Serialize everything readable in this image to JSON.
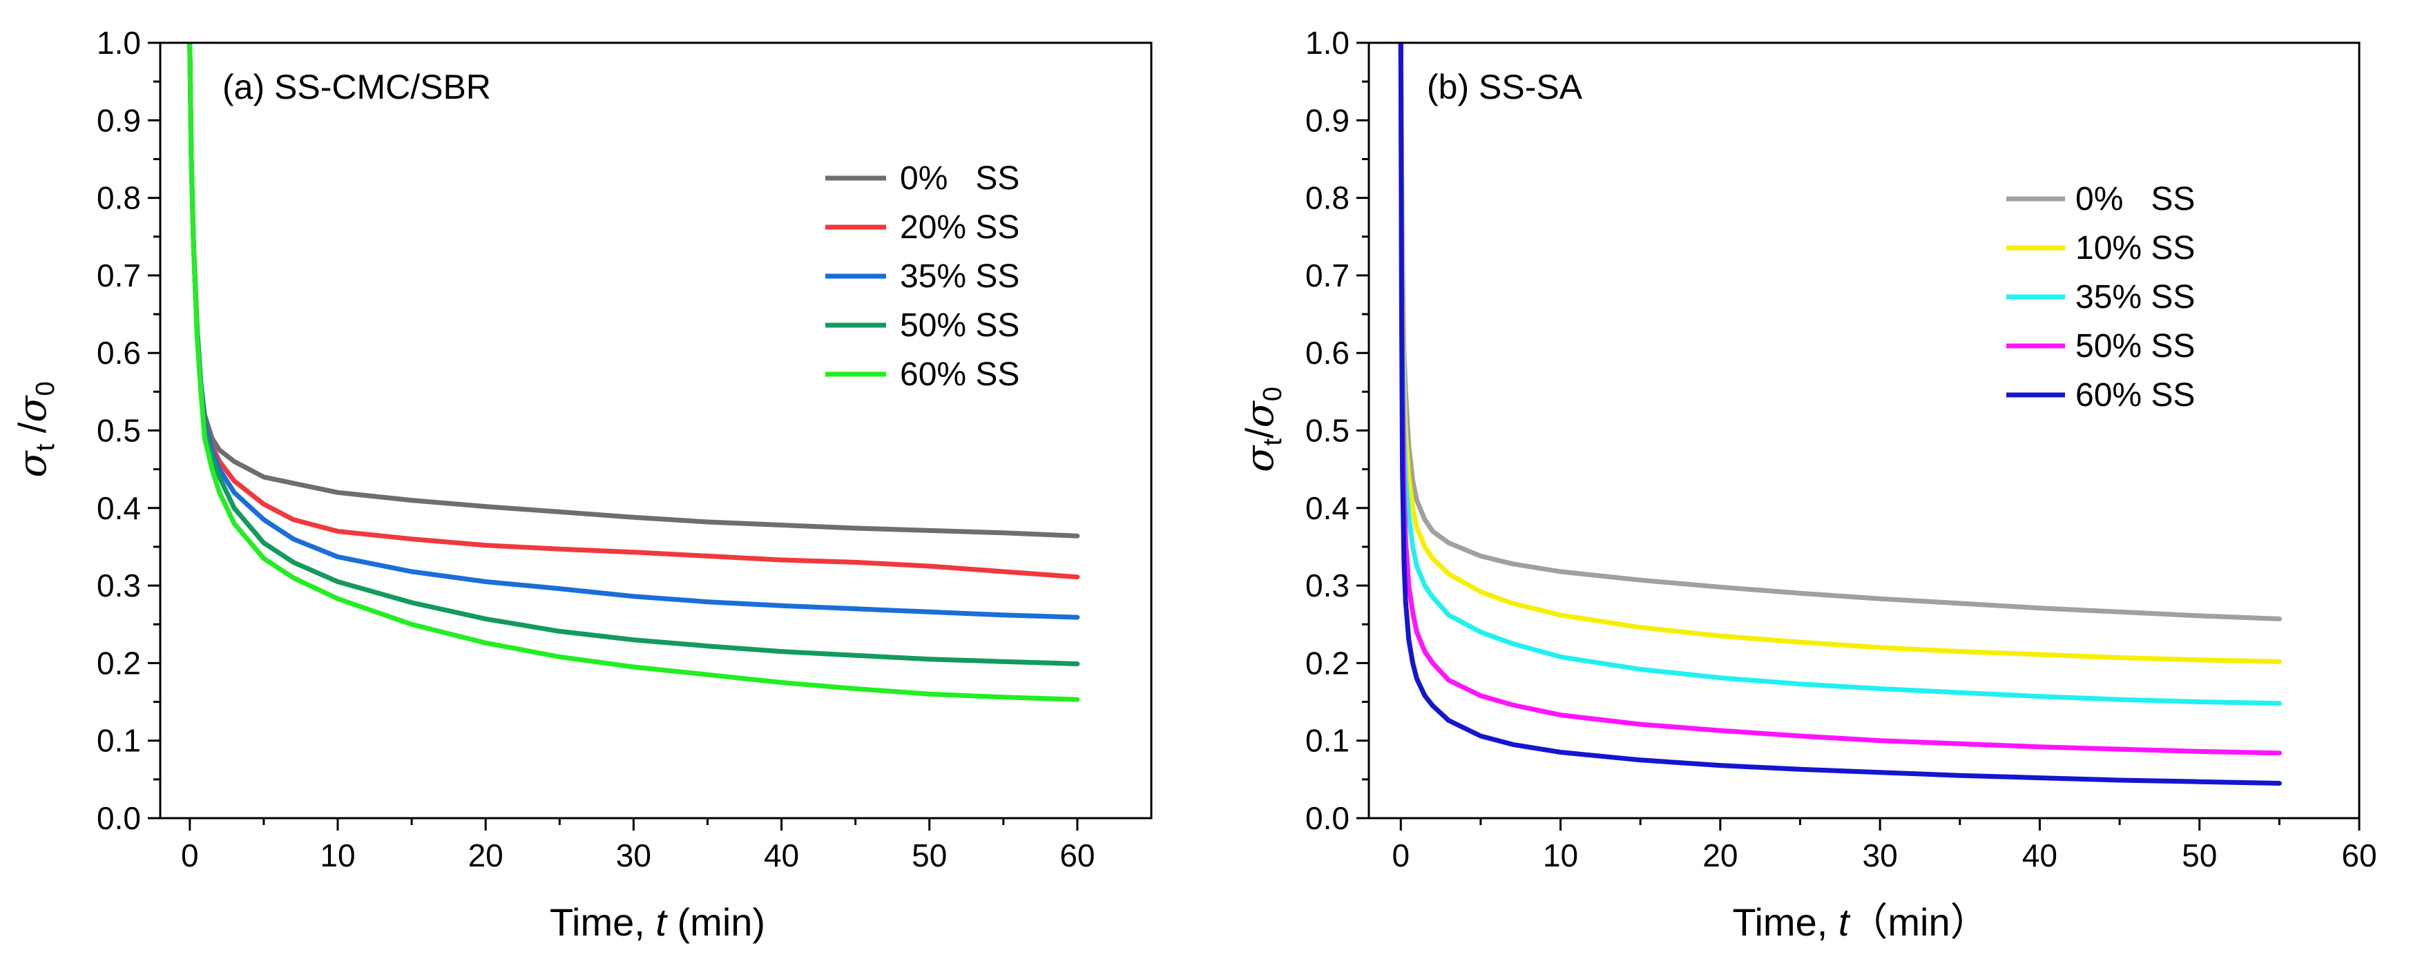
{
  "chart_data": [
    {
      "type": "line",
      "title": "(a) SS-CMC/SBR",
      "xlabel": {
        "prefix": "Time, ",
        "var": "t",
        "suffix": " (min)"
      },
      "ylabel": {
        "sym": "σ",
        "sub1": "t",
        "sep": " /",
        "sub2": "0"
      },
      "xlim": [
        -2,
        65
      ],
      "ylim": [
        0,
        1.0
      ],
      "xticks": [
        0,
        10,
        20,
        30,
        40,
        50,
        60
      ],
      "xtick_labels": [
        "0",
        "10",
        "20",
        "30",
        "40",
        "50",
        "60"
      ],
      "yticks": [
        0,
        0.1,
        0.2,
        0.3,
        0.4,
        0.5,
        0.6,
        0.7,
        0.8,
        0.9,
        1.0
      ],
      "ytick_labels": [
        "0.0",
        "0.1",
        "0.2",
        "0.3",
        "0.4",
        "0.5",
        "0.6",
        "0.7",
        "0.8",
        "0.9",
        "1.0"
      ],
      "grid": false,
      "legend_position": "top-right",
      "series": [
        {
          "name": "0%   SS",
          "color": "#6e6e6e",
          "x": [
            0,
            0.1,
            0.25,
            0.5,
            0.75,
            1,
            1.5,
            2,
            3,
            5,
            7,
            10,
            15,
            20,
            25,
            30,
            35,
            40,
            45,
            50,
            55,
            60
          ],
          "y": [
            1.0,
            0.85,
            0.74,
            0.63,
            0.56,
            0.52,
            0.49,
            0.475,
            0.46,
            0.44,
            0.432,
            0.42,
            0.41,
            0.402,
            0.395,
            0.388,
            0.382,
            0.378,
            0.374,
            0.371,
            0.368,
            0.364
          ]
        },
        {
          "name": "20% SS",
          "color": "#f0393b",
          "x": [
            0,
            0.1,
            0.25,
            0.5,
            0.75,
            1,
            1.5,
            2,
            3,
            5,
            7,
            10,
            15,
            20,
            25,
            30,
            35,
            40,
            45,
            50,
            55,
            60
          ],
          "y": [
            1.0,
            0.85,
            0.74,
            0.63,
            0.56,
            0.51,
            0.48,
            0.46,
            0.435,
            0.405,
            0.385,
            0.37,
            0.36,
            0.352,
            0.347,
            0.343,
            0.338,
            0.333,
            0.33,
            0.325,
            0.318,
            0.311
          ]
        },
        {
          "name": "35% SS",
          "color": "#1a6ed8",
          "x": [
            0,
            0.1,
            0.25,
            0.5,
            0.75,
            1,
            1.5,
            2,
            3,
            5,
            7,
            10,
            15,
            20,
            25,
            30,
            35,
            40,
            45,
            50,
            55,
            60
          ],
          "y": [
            1.0,
            0.85,
            0.74,
            0.63,
            0.56,
            0.51,
            0.475,
            0.45,
            0.42,
            0.385,
            0.36,
            0.337,
            0.318,
            0.305,
            0.296,
            0.286,
            0.279,
            0.274,
            0.27,
            0.266,
            0.262,
            0.259
          ]
        },
        {
          "name": "50% SS",
          "color": "#139a5e",
          "x": [
            0,
            0.1,
            0.25,
            0.5,
            0.75,
            1,
            1.5,
            2,
            3,
            5,
            7,
            10,
            15,
            20,
            25,
            30,
            35,
            40,
            45,
            50,
            55,
            60
          ],
          "y": [
            1.0,
            0.85,
            0.74,
            0.62,
            0.55,
            0.5,
            0.465,
            0.44,
            0.4,
            0.355,
            0.33,
            0.305,
            0.278,
            0.257,
            0.241,
            0.23,
            0.222,
            0.215,
            0.21,
            0.205,
            0.202,
            0.199
          ]
        },
        {
          "name": "60% SS",
          "color": "#22ee22",
          "x": [
            0,
            0.1,
            0.25,
            0.5,
            0.75,
            1,
            1.5,
            2,
            3,
            5,
            7,
            10,
            15,
            20,
            25,
            30,
            35,
            40,
            45,
            50,
            55,
            60
          ],
          "y": [
            1.0,
            0.85,
            0.74,
            0.62,
            0.55,
            0.49,
            0.45,
            0.42,
            0.38,
            0.335,
            0.31,
            0.283,
            0.25,
            0.226,
            0.208,
            0.195,
            0.185,
            0.175,
            0.167,
            0.16,
            0.156,
            0.153
          ]
        }
      ]
    },
    {
      "type": "line",
      "title": "(b) SS-SA",
      "xlabel": {
        "prefix": "Time, ",
        "var": "t",
        "suffix": "（min）"
      },
      "ylabel": {
        "sym": "σ",
        "sub1": "t",
        "sep": "/",
        "sub2": "0"
      },
      "xlim": [
        -2,
        60
      ],
      "ylim": [
        0,
        1.0
      ],
      "xticks": [
        0,
        10,
        20,
        30,
        40,
        50,
        60
      ],
      "xtick_labels": [
        "0",
        "10",
        "20",
        "30",
        "40",
        "50",
        "60"
      ],
      "yticks": [
        0,
        0.1,
        0.2,
        0.3,
        0.4,
        0.5,
        0.6,
        0.7,
        0.8,
        0.9,
        1.0
      ],
      "ytick_labels": [
        "0.0",
        "0.1",
        "0.2",
        "0.3",
        "0.4",
        "0.5",
        "0.6",
        "0.7",
        "0.8",
        "0.9",
        "1.0"
      ],
      "grid": false,
      "legend_position": "top-right",
      "series": [
        {
          "name": "0%   SS",
          "color": "#a0a0a0",
          "x": [
            0,
            0.05,
            0.1,
            0.2,
            0.3,
            0.5,
            0.75,
            1,
            1.5,
            2,
            3,
            5,
            7,
            10,
            15,
            20,
            25,
            30,
            35,
            40,
            45,
            50,
            55
          ],
          "y": [
            1.0,
            0.85,
            0.72,
            0.6,
            0.55,
            0.48,
            0.435,
            0.41,
            0.385,
            0.37,
            0.355,
            0.338,
            0.328,
            0.318,
            0.307,
            0.298,
            0.29,
            0.283,
            0.277,
            0.271,
            0.266,
            0.261,
            0.257
          ]
        },
        {
          "name": "10% SS",
          "color": "#f6f000",
          "x": [
            0,
            0.05,
            0.1,
            0.2,
            0.3,
            0.5,
            0.75,
            1,
            1.5,
            2,
            3,
            5,
            7,
            10,
            15,
            20,
            25,
            30,
            35,
            40,
            45,
            50,
            55
          ],
          "y": [
            1.0,
            0.82,
            0.68,
            0.56,
            0.5,
            0.44,
            0.4,
            0.375,
            0.35,
            0.335,
            0.315,
            0.292,
            0.277,
            0.262,
            0.246,
            0.235,
            0.227,
            0.22,
            0.215,
            0.211,
            0.207,
            0.204,
            0.202
          ]
        },
        {
          "name": "35% SS",
          "color": "#22f0f0",
          "x": [
            0,
            0.05,
            0.1,
            0.2,
            0.3,
            0.5,
            0.75,
            1,
            1.5,
            2,
            3,
            5,
            7,
            10,
            15,
            20,
            25,
            30,
            35,
            40,
            45,
            50,
            55
          ],
          "y": [
            1.0,
            0.8,
            0.64,
            0.5,
            0.44,
            0.39,
            0.35,
            0.325,
            0.3,
            0.285,
            0.262,
            0.24,
            0.225,
            0.208,
            0.192,
            0.181,
            0.173,
            0.167,
            0.162,
            0.157,
            0.153,
            0.15,
            0.148
          ]
        },
        {
          "name": "50% SS",
          "color": "#ff14ff",
          "x": [
            0,
            0.05,
            0.1,
            0.2,
            0.3,
            0.5,
            0.75,
            1,
            1.5,
            2,
            3,
            5,
            7,
            10,
            15,
            20,
            25,
            30,
            35,
            40,
            45,
            50,
            55
          ],
          "y": [
            1.0,
            0.75,
            0.56,
            0.42,
            0.36,
            0.3,
            0.265,
            0.24,
            0.215,
            0.2,
            0.178,
            0.158,
            0.146,
            0.133,
            0.121,
            0.113,
            0.106,
            0.1,
            0.096,
            0.092,
            0.089,
            0.086,
            0.084
          ]
        },
        {
          "name": "60% SS",
          "color": "#1515d0",
          "x": [
            0,
            0.05,
            0.1,
            0.2,
            0.3,
            0.5,
            0.75,
            1,
            1.5,
            2,
            3,
            5,
            7,
            10,
            15,
            20,
            25,
            30,
            35,
            40,
            45,
            50,
            55
          ],
          "y": [
            1.0,
            0.65,
            0.45,
            0.33,
            0.28,
            0.23,
            0.2,
            0.18,
            0.158,
            0.145,
            0.126,
            0.106,
            0.095,
            0.085,
            0.075,
            0.068,
            0.063,
            0.059,
            0.055,
            0.052,
            0.049,
            0.047,
            0.045
          ]
        }
      ]
    }
  ]
}
